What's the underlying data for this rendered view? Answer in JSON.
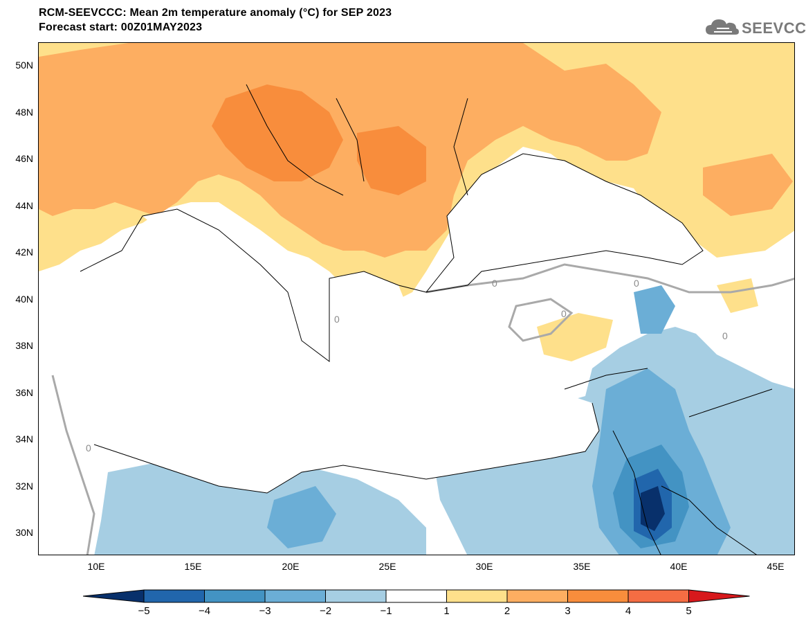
{
  "header": {
    "title_line1": "RCM-SEEVCCC: Mean 2m temperature anomaly (°C) for SEP 2023",
    "title_line2": "Forecast start: 00Z01MAY2023"
  },
  "logo": {
    "text": "SEEVCCC",
    "icon": "cloud-icon",
    "color": "#7a7a7a"
  },
  "map": {
    "lon_range": [
      7,
      46
    ],
    "lat_range": [
      29,
      51
    ],
    "lat_labels": [
      "50N",
      "48N",
      "46N",
      "44N",
      "42N",
      "40N",
      "38N",
      "36N",
      "34N",
      "32N",
      "30N"
    ],
    "lon_labels": [
      "10E",
      "15E",
      "20E",
      "25E",
      "30E",
      "35E",
      "40E",
      "45E"
    ],
    "contour_label": "0"
  },
  "colorbar": {
    "colors": [
      "#08306b",
      "#2166ac",
      "#4393c3",
      "#6baed6",
      "#a6cee3",
      "#ffffff",
      "#fee08b",
      "#fdae61",
      "#f88d3c",
      "#f46d43",
      "#d7191c"
    ],
    "tick_labels": [
      "−5",
      "−4",
      "−3",
      "−2",
      "−1",
      "1",
      "2",
      "3",
      "4",
      "5"
    ]
  }
}
